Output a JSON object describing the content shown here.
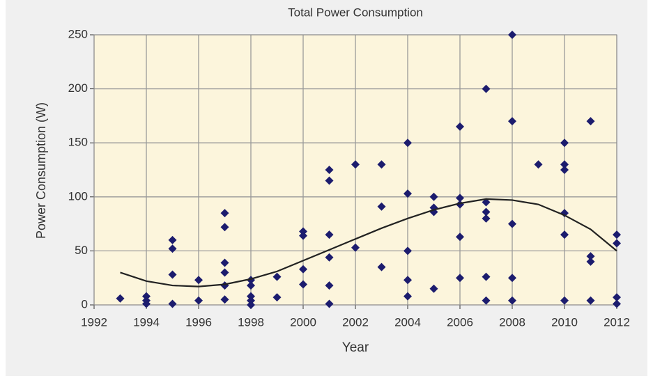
{
  "chart_data": {
    "type": "scatter",
    "title": "Total Power Consumption",
    "x_label": "Year",
    "y_label": "Power Consumption (W)",
    "xlim": [
      1992,
      2012
    ],
    "xticks": [
      1992,
      1994,
      1996,
      1998,
      2000,
      2002,
      2004,
      2006,
      2008,
      2010,
      2012
    ],
    "ylim": [
      0,
      250
    ],
    "yticks": [
      0,
      50,
      100,
      150,
      200,
      250
    ],
    "grid": true,
    "series": [
      {
        "color": "#1c1c6e",
        "style": "marker",
        "x": [
          1993,
          1994,
          1994,
          1994,
          1995,
          1995,
          1995,
          1995,
          1996,
          1996,
          1997,
          1997,
          1997,
          1997,
          1997,
          1997,
          1998,
          1998,
          1998,
          1998,
          1998,
          1999,
          1999,
          2000,
          2000,
          2000,
          2000,
          2001,
          2001,
          2001,
          2001,
          2001,
          2001,
          2002,
          2002,
          2003,
          2003,
          2003,
          2004,
          2004,
          2004,
          2004,
          2004,
          2005,
          2005,
          2005,
          2005,
          2006,
          2006,
          2006,
          2006,
          2006,
          2007,
          2007,
          2007,
          2007,
          2007,
          2007,
          2008,
          2008,
          2008,
          2008,
          2008,
          2009,
          2010,
          2010,
          2010,
          2010,
          2010,
          2010,
          2011,
          2011,
          2011,
          2011,
          2012,
          2012,
          2012,
          2012
        ],
        "values": [
          6,
          8,
          4,
          1,
          60,
          52,
          28,
          1,
          23,
          4,
          85,
          72,
          39,
          30,
          18,
          5,
          23,
          18,
          8,
          4,
          0,
          26,
          7,
          68,
          64,
          33,
          19,
          125,
          115,
          65,
          44,
          18,
          1,
          130,
          53,
          130,
          91,
          35,
          150,
          103,
          50,
          23,
          8,
          100,
          90,
          86,
          15,
          165,
          99,
          93,
          63,
          25,
          200,
          95,
          86,
          80,
          26,
          4,
          250,
          170,
          75,
          25,
          4,
          130,
          150,
          130,
          125,
          85,
          65,
          4,
          170,
          45,
          40,
          4,
          65,
          57,
          7,
          1
        ]
      },
      {
        "color": "#222222",
        "style": "line",
        "x": [
          1993,
          1994,
          1995,
          1996,
          1997,
          1998,
          1999,
          2000,
          2001,
          2002,
          2003,
          2004,
          2005,
          2006,
          2007,
          2008,
          2009,
          2010,
          2011,
          2012
        ],
        "values": [
          30,
          22,
          18,
          17,
          19,
          24,
          31,
          41,
          51,
          61,
          71,
          80,
          88,
          94,
          98,
          97,
          93,
          83,
          70,
          50
        ]
      }
    ]
  }
}
